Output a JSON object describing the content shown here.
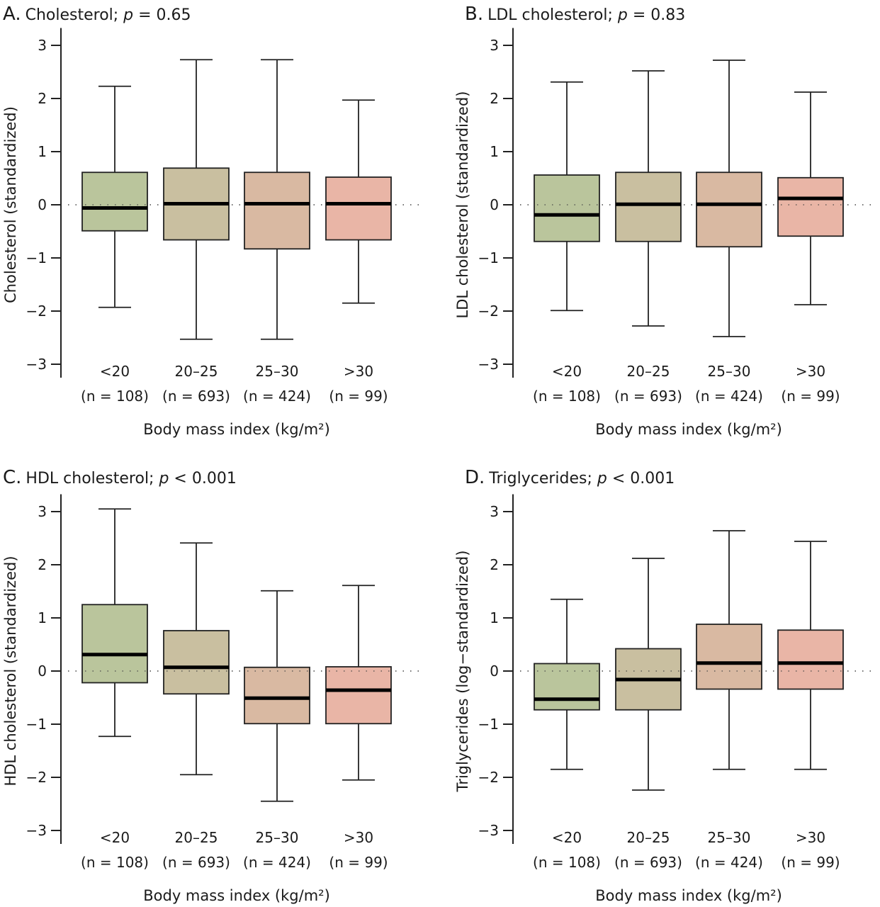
{
  "figure": {
    "x_axis_title": "Body mass index (kg/m²)",
    "group_colors": {
      "<20": "#bac59c",
      "20–25": "#c9bfa0",
      "25–30": "#d9b9a2",
      ">30": "#e9b5a6"
    },
    "line_color": "#222222",
    "median_color": "#000000"
  },
  "chart_data": [
    {
      "panel": "A.",
      "type": "box",
      "title_text": "Cholesterol; ",
      "p_label": "p",
      "p_value_text": " = 0.65",
      "title": "Cholesterol; p = 0.65",
      "xlabel": "Body mass index (kg/m²)",
      "ylabel": "Cholesterol (standardized)",
      "ylim": [
        -3.2,
        3.3
      ],
      "yticks": [
        3,
        2,
        1,
        0,
        -1,
        -2,
        -3
      ],
      "ytick_labels": [
        "3",
        "2",
        "1",
        "0",
        "−1",
        "−2",
        "−3"
      ],
      "reference_line": 0,
      "grid": false,
      "categories": [
        "<20",
        "20–25",
        "25–30",
        ">30"
      ],
      "n_labels": [
        "(n = 108)",
        "(n = 693)",
        "(n = 424)",
        "(n = 99)"
      ],
      "boxes": [
        {
          "whisker_low": -1.93,
          "q1": -0.49,
          "median": -0.06,
          "q3": 0.61,
          "whisker_high": 2.23
        },
        {
          "whisker_low": -2.53,
          "q1": -0.66,
          "median": 0.02,
          "q3": 0.69,
          "whisker_high": 2.73
        },
        {
          "whisker_low": -2.53,
          "q1": -0.83,
          "median": 0.02,
          "q3": 0.61,
          "whisker_high": 2.73
        },
        {
          "whisker_low": -1.85,
          "q1": -0.66,
          "median": 0.02,
          "q3": 0.52,
          "whisker_high": 1.97
        }
      ]
    },
    {
      "panel": "B.",
      "type": "box",
      "title_text": "LDL cholesterol; ",
      "p_label": "p",
      "p_value_text": " = 0.83",
      "title": "LDL cholesterol; p = 0.83",
      "xlabel": "Body mass index (kg/m²)",
      "ylabel": "LDL cholesterol (standardized)",
      "ylim": [
        -3.2,
        3.3
      ],
      "yticks": [
        3,
        2,
        1,
        0,
        -1,
        -2,
        -3
      ],
      "ytick_labels": [
        "3",
        "2",
        "1",
        "0",
        "−1",
        "−2",
        "−3"
      ],
      "reference_line": 0,
      "grid": false,
      "categories": [
        "<20",
        "20–25",
        "25–30",
        ">30"
      ],
      "n_labels": [
        "(n = 108)",
        "(n = 693)",
        "(n = 424)",
        "(n = 99)"
      ],
      "boxes": [
        {
          "whisker_low": -1.99,
          "q1": -0.69,
          "median": -0.19,
          "q3": 0.56,
          "whisker_high": 2.31
        },
        {
          "whisker_low": -2.28,
          "q1": -0.69,
          "median": 0.01,
          "q3": 0.61,
          "whisker_high": 2.52
        },
        {
          "whisker_low": -2.48,
          "q1": -0.79,
          "median": 0.01,
          "q3": 0.61,
          "whisker_high": 2.72
        },
        {
          "whisker_low": -1.88,
          "q1": -0.59,
          "median": 0.12,
          "q3": 0.51,
          "whisker_high": 2.12
        }
      ]
    },
    {
      "panel": "C.",
      "type": "box",
      "title_text": "HDL cholesterol; ",
      "p_label": "p",
      "p_value_text": " < 0.001",
      "title": "HDL cholesterol; p < 0.001",
      "xlabel": "Body mass index (kg/m²)",
      "ylabel": "HDL cholesterol (standardized)",
      "ylim": [
        -3.2,
        3.3
      ],
      "yticks": [
        3,
        2,
        1,
        0,
        -1,
        -2,
        -3
      ],
      "ytick_labels": [
        "3",
        "2",
        "1",
        "0",
        "−1",
        "−2",
        "−3"
      ],
      "reference_line": 0,
      "grid": false,
      "categories": [
        "<20",
        "20–25",
        "25–30",
        ">30"
      ],
      "n_labels": [
        "(n = 108)",
        "(n = 693)",
        "(n = 424)",
        "(n = 99)"
      ],
      "boxes": [
        {
          "whisker_low": -1.23,
          "q1": -0.22,
          "median": 0.31,
          "q3": 1.25,
          "whisker_high": 3.05
        },
        {
          "whisker_low": -1.95,
          "q1": -0.43,
          "median": 0.07,
          "q3": 0.76,
          "whisker_high": 2.41
        },
        {
          "whisker_low": -2.45,
          "q1": -0.99,
          "median": -0.51,
          "q3": 0.07,
          "whisker_high": 1.51
        },
        {
          "whisker_low": -2.05,
          "q1": -0.99,
          "median": -0.36,
          "q3": 0.08,
          "whisker_high": 1.61
        }
      ]
    },
    {
      "panel": "D.",
      "type": "box",
      "title_text": "Triglycerides; ",
      "p_label": "p",
      "p_value_text": " < 0.001",
      "title": "Triglycerides; p < 0.001",
      "xlabel": "Body mass index (kg/m²)",
      "ylabel": "Triglycerides (log−standardized)",
      "ylim": [
        -3.2,
        3.3
      ],
      "yticks": [
        3,
        2,
        1,
        0,
        -1,
        -2,
        -3
      ],
      "ytick_labels": [
        "3",
        "2",
        "1",
        "0",
        "−1",
        "−2",
        "−3"
      ],
      "reference_line": 0,
      "grid": false,
      "categories": [
        "<20",
        "20–25",
        "25–30",
        ">30"
      ],
      "n_labels": [
        "(n = 108)",
        "(n = 693)",
        "(n = 424)",
        "(n = 99)"
      ],
      "boxes": [
        {
          "whisker_low": -1.85,
          "q1": -0.73,
          "median": -0.53,
          "q3": 0.14,
          "whisker_high": 1.35
        },
        {
          "whisker_low": -2.24,
          "q1": -0.73,
          "median": -0.16,
          "q3": 0.42,
          "whisker_high": 2.12
        },
        {
          "whisker_low": -1.85,
          "q1": -0.34,
          "median": 0.15,
          "q3": 0.88,
          "whisker_high": 2.64
        },
        {
          "whisker_low": -1.85,
          "q1": -0.34,
          "median": 0.15,
          "q3": 0.77,
          "whisker_high": 2.44
        }
      ]
    }
  ]
}
